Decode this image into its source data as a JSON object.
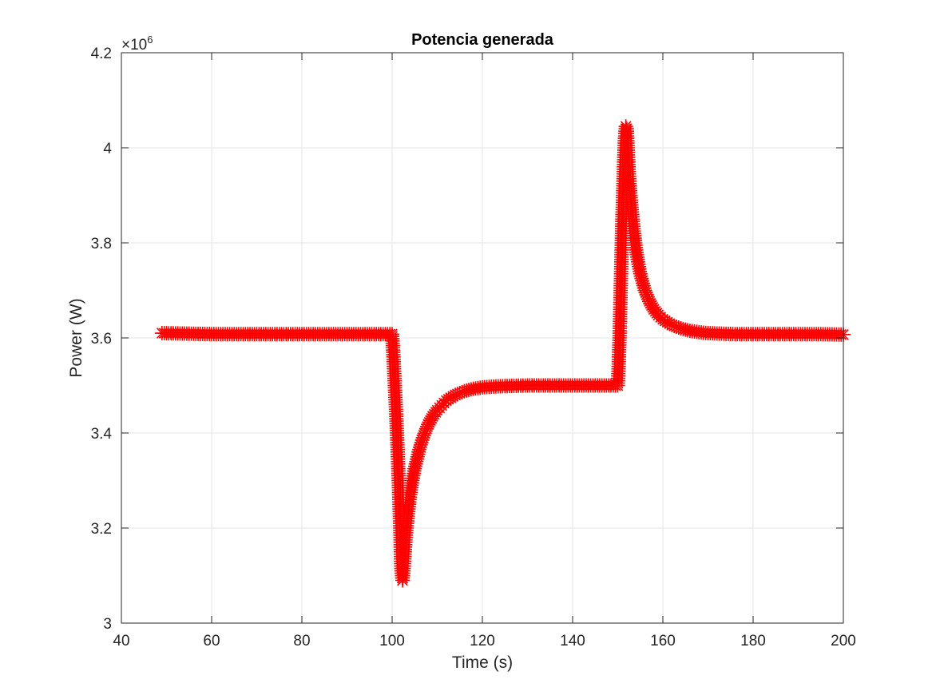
{
  "chart_data": {
    "type": "scatter",
    "title": "Potencia generada",
    "xlabel": "Time (s)",
    "ylabel": "Power (W)",
    "xlim": [
      40,
      200
    ],
    "ylim": [
      3000000,
      4200000
    ],
    "x_ticks": [
      40,
      60,
      80,
      100,
      120,
      140,
      160,
      180,
      200
    ],
    "x_tick_labels": [
      "40",
      "60",
      "80",
      "100",
      "120",
      "140",
      "160",
      "180",
      "200"
    ],
    "y_ticks": [
      3000000,
      3200000,
      3400000,
      3600000,
      3800000,
      4000000,
      4200000
    ],
    "y_tick_labels": [
      "3",
      "3.2",
      "3.4",
      "3.6",
      "3.8",
      "4",
      "4.2"
    ],
    "y_exponent_base": "×10",
    "y_exponent_power": "6",
    "grid": true,
    "marker": "asterisk",
    "marker_color": "#ff0000",
    "series": [
      {
        "x": [
          49,
          55,
          60,
          65,
          70,
          75,
          80,
          85,
          90,
          95,
          99,
          100,
          100.3,
          100.6,
          100.9,
          101.2,
          101.5,
          101.8,
          102,
          102.3,
          102.6,
          103,
          103.5,
          104,
          104.5,
          105,
          106,
          107,
          108,
          109,
          110,
          112,
          114,
          116,
          118,
          120,
          123,
          126,
          130,
          135,
          140,
          145,
          149,
          150,
          150.2,
          150.4,
          150.6,
          150.8,
          151,
          151.2,
          151.4,
          151.6,
          151.8,
          152,
          152.2,
          152.5,
          153,
          153.5,
          154,
          154.5,
          155,
          156,
          157,
          158,
          159,
          160,
          162,
          164,
          166,
          168,
          170,
          173,
          176,
          180,
          185,
          190,
          195,
          200
        ],
        "y": [
          3610000,
          3609000,
          3608000,
          3608000,
          3608000,
          3608000,
          3608000,
          3608000,
          3608000,
          3608000,
          3608000,
          3608000,
          3560000,
          3500000,
          3440000,
          3370000,
          3290000,
          3200000,
          3120000,
          3090000,
          3120000,
          3180000,
          3230000,
          3270000,
          3300000,
          3325000,
          3365000,
          3395000,
          3418000,
          3435000,
          3448000,
          3468000,
          3480000,
          3488000,
          3493000,
          3496000,
          3498000,
          3499000,
          3500000,
          3500000,
          3500000,
          3500000,
          3500000,
          3500000,
          3540000,
          3600000,
          3680000,
          3760000,
          3840000,
          3910000,
          3970000,
          4020000,
          4045000,
          4040000,
          4000000,
          3940000,
          3880000,
          3830000,
          3790000,
          3760000,
          3735000,
          3700000,
          3677000,
          3660000,
          3648000,
          3639000,
          3627000,
          3620000,
          3615000,
          3612000,
          3610000,
          3609000,
          3608000,
          3608000,
          3608000,
          3608000,
          3608000,
          3607000
        ]
      }
    ]
  }
}
